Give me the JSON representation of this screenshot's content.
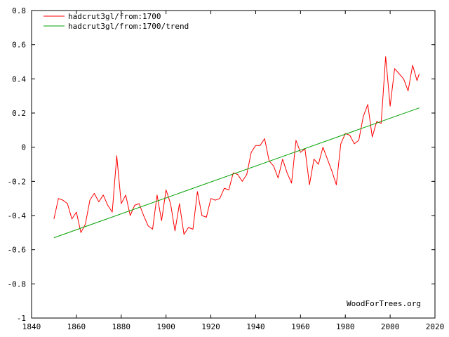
{
  "chart_data": {
    "type": "line",
    "xlim": [
      1840,
      2020
    ],
    "ylim": [
      -1,
      0.8
    ],
    "x_ticks": [
      1840,
      1860,
      1880,
      1900,
      1920,
      1940,
      1960,
      1980,
      2000,
      2020
    ],
    "y_ticks": [
      -1,
      -0.8,
      -0.6,
      -0.4,
      -0.2,
      0,
      0.2,
      0.4,
      0.6,
      0.8
    ],
    "x_tick_labels": [
      "1840",
      "1860",
      "1880",
      "1900",
      "1920",
      "1940",
      "1960",
      "1980",
      "2000",
      "2020"
    ],
    "y_tick_labels": [
      "-1",
      "-0.8",
      "-0.6",
      "-0.4",
      "-0.2",
      "0",
      "0.2",
      "0.4",
      "0.6",
      "0.8"
    ],
    "grid": false,
    "legend_placement": "top-left",
    "credit": "WoodForTrees.org",
    "series": [
      {
        "name": "hadcrut3gl/from:1700",
        "color": "#ff0000",
        "x": [
          1850,
          1852,
          1854,
          1856,
          1858,
          1860,
          1862,
          1864,
          1866,
          1868,
          1870,
          1872,
          1874,
          1876,
          1878,
          1880,
          1882,
          1884,
          1886,
          1888,
          1890,
          1892,
          1894,
          1896,
          1898,
          1900,
          1902,
          1904,
          1906,
          1908,
          1910,
          1912,
          1914,
          1916,
          1918,
          1920,
          1922,
          1924,
          1926,
          1928,
          1930,
          1932,
          1934,
          1936,
          1938,
          1940,
          1942,
          1944,
          1946,
          1948,
          1950,
          1952,
          1954,
          1956,
          1958,
          1960,
          1962,
          1964,
          1966,
          1968,
          1970,
          1972,
          1974,
          1976,
          1978,
          1980,
          1982,
          1984,
          1986,
          1988,
          1990,
          1992,
          1994,
          1996,
          1998,
          2000,
          2002,
          2004,
          2006,
          2008,
          2010,
          2012,
          2013
        ],
        "y": [
          -0.42,
          -0.3,
          -0.31,
          -0.33,
          -0.42,
          -0.38,
          -0.5,
          -0.45,
          -0.31,
          -0.27,
          -0.32,
          -0.28,
          -0.34,
          -0.38,
          -0.05,
          -0.33,
          -0.28,
          -0.4,
          -0.34,
          -0.33,
          -0.4,
          -0.46,
          -0.48,
          -0.28,
          -0.43,
          -0.25,
          -0.33,
          -0.49,
          -0.33,
          -0.51,
          -0.47,
          -0.48,
          -0.26,
          -0.4,
          -0.41,
          -0.3,
          -0.31,
          -0.3,
          -0.24,
          -0.25,
          -0.15,
          -0.16,
          -0.2,
          -0.16,
          -0.03,
          0.01,
          0.01,
          0.05,
          -0.08,
          -0.11,
          -0.18,
          -0.07,
          -0.15,
          -0.21,
          0.04,
          -0.03,
          -0.01,
          -0.22,
          -0.07,
          -0.1,
          0.0,
          -0.07,
          -0.14,
          -0.22,
          0.02,
          0.08,
          0.07,
          0.02,
          0.04,
          0.18,
          0.25,
          0.06,
          0.15,
          0.14,
          0.53,
          0.24,
          0.46,
          0.43,
          0.4,
          0.33,
          0.48,
          0.39,
          0.43
        ]
      },
      {
        "name": "hadcrut3gl/from:1700/trend",
        "color": "#00a000",
        "x": [
          1850,
          2013
        ],
        "y": [
          -0.53,
          0.23
        ]
      }
    ]
  }
}
